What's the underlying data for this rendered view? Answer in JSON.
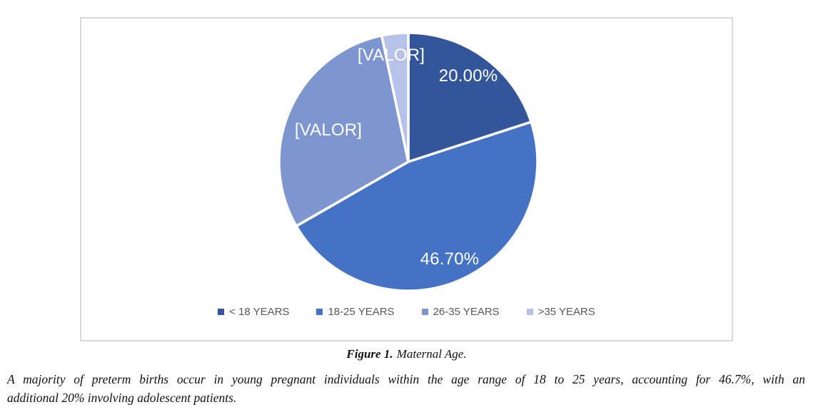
{
  "figure": {
    "caption_prefix": "Figure 1.",
    "caption_text": "Maternal Age.",
    "description_line1": "A majority of preterm births occur in young pregnant individuals within the age range of 18 to 25 years, accounting for 46.7%, with an",
    "description_line2": "additional 20% involving adolescent patients."
  },
  "chart_data": {
    "type": "pie",
    "title": "Maternal Age",
    "categories": [
      "< 18 YEARS",
      "18-25 YEARS",
      "26-35 YEARS",
      ">35 YEARS"
    ],
    "values": [
      20.0,
      46.7,
      30.0,
      3.3
    ],
    "colors": [
      "#33569B",
      "#4472C4",
      "#7E96D0",
      "#B6C2E7"
    ],
    "slice_labels": [
      "20.00%",
      "46.70%",
      "[VALOR]",
      "[VALOR]"
    ],
    "label_color": "#FFFFFF",
    "legend_position": "bottom",
    "legend_text_color": "#595959",
    "frame_border_color": "#D9D9D9",
    "start_angle_deg": 0,
    "direction": "clockwise"
  }
}
